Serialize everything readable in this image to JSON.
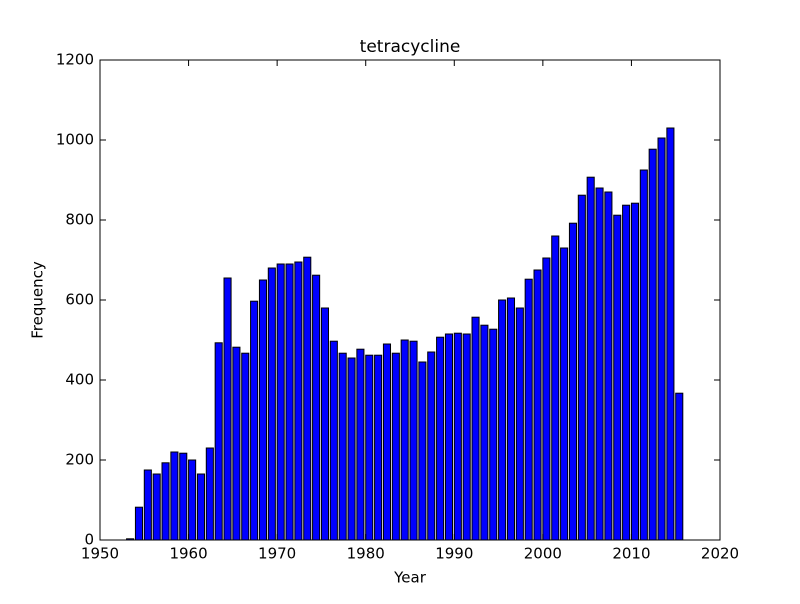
{
  "chart_data": {
    "type": "bar",
    "title": "tetracycline",
    "xlabel": "Year",
    "ylabel": "Frequency",
    "x": [
      1953,
      1954,
      1955,
      1956,
      1957,
      1958,
      1959,
      1960,
      1961,
      1962,
      1963,
      1964,
      1965,
      1966,
      1967,
      1968,
      1969,
      1970,
      1971,
      1972,
      1973,
      1974,
      1975,
      1976,
      1977,
      1978,
      1979,
      1980,
      1981,
      1982,
      1983,
      1984,
      1985,
      1986,
      1987,
      1988,
      1989,
      1990,
      1991,
      1992,
      1993,
      1994,
      1995,
      1996,
      1997,
      1998,
      1999,
      2000,
      2001,
      2002,
      2003,
      2004,
      2005,
      2006,
      2007,
      2008,
      2009,
      2010,
      2011,
      2012,
      2013,
      2014,
      2015
    ],
    "values": [
      3,
      82,
      175,
      165,
      193,
      220,
      217,
      200,
      165,
      230,
      493,
      655,
      482,
      467,
      597,
      650,
      680,
      690,
      690,
      695,
      707,
      662,
      580,
      497,
      467,
      455,
      477,
      462,
      462,
      490,
      467,
      500,
      497,
      445,
      470,
      507,
      515,
      517,
      515,
      557,
      537,
      527,
      600,
      605,
      580,
      652,
      675,
      705,
      760,
      730,
      792,
      862,
      907,
      880,
      870,
      812,
      837,
      842,
      925,
      977,
      1005,
      1030,
      367
    ],
    "color": "#0000ff",
    "xlim": [
      1950,
      2020
    ],
    "xticks": [
      1950,
      1960,
      1970,
      1980,
      1990,
      2000,
      2010,
      2020
    ],
    "ylim": [
      0,
      1200
    ],
    "yticks": [
      0,
      200,
      400,
      600,
      800,
      1000,
      1200
    ]
  }
}
